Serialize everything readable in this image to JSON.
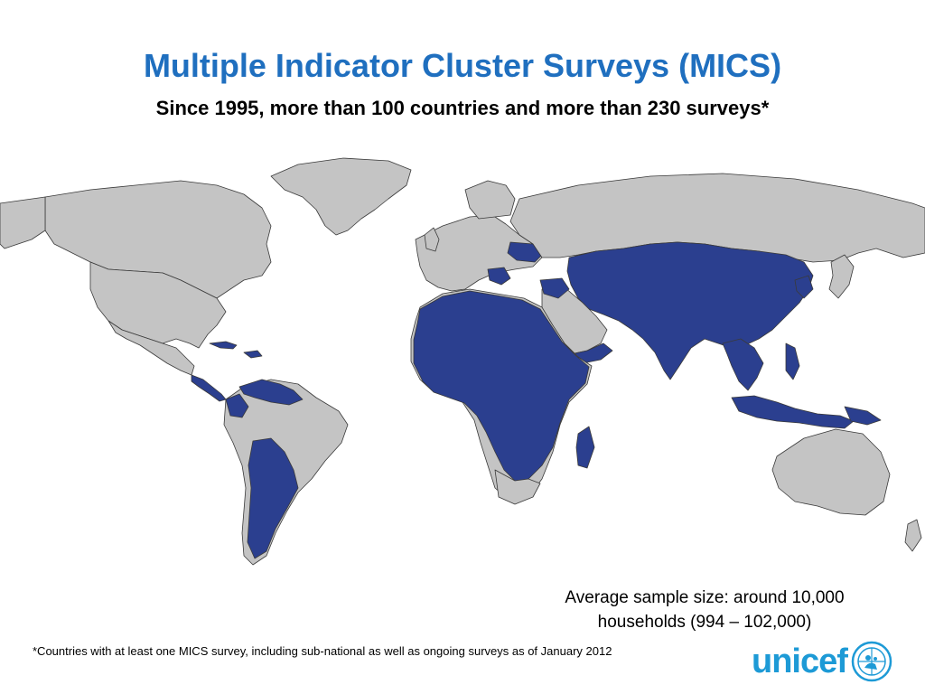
{
  "title": "Multiple Indicator Cluster Surveys (MICS)",
  "subtitle": "Since 1995, more than 100 countries and more than 230 surveys*",
  "map": {
    "highlight_color": "#2b3f8f",
    "base_color": "#c4c4c4",
    "border_color": "#3a3a3a",
    "legend_meaning": "Countries with at least one MICS survey"
  },
  "sample_size": {
    "line1": "Average sample size: around 10,000",
    "line2": "households (994 – 102,000)"
  },
  "footnote": "*Countries with at least one MICS survey, including sub-national as well as ongoing surveys as of January 2012",
  "logo": {
    "text": "unicef",
    "color": "#1d9ad6"
  }
}
